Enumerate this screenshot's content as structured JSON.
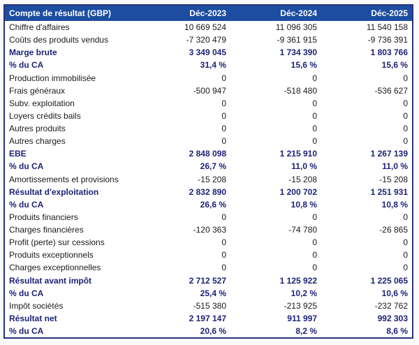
{
  "colors": {
    "page_bg": "#fafafa",
    "header_bg": "#1c4da0",
    "header_text": "#ffffff",
    "table_border": "#27347d",
    "body_text": "#1a1a1a",
    "bold_text": "#1e2276",
    "table_bg": "#ffffff"
  },
  "chart_data": {
    "type": "table",
    "title": "Compte de résultat (GBP)",
    "columns": [
      "Déc-2023",
      "Déc-2024",
      "Déc-2025"
    ],
    "rows": [
      {
        "label": "Chiffre d'affaires",
        "values": [
          "10 669 524",
          "11 096 305",
          "11 540 158"
        ],
        "bold": false
      },
      {
        "label": "Coûts des produits vendus",
        "values": [
          "-7 320 479",
          "-9 361 915",
          "-9 736 391"
        ],
        "bold": false
      },
      {
        "label": "Marge brute",
        "values": [
          "3 349 045",
          "1 734 390",
          "1 803 766"
        ],
        "bold": true
      },
      {
        "label": "% du CA",
        "values": [
          "31,4 %",
          "15,6 %",
          "15,6 %"
        ],
        "bold": true
      },
      {
        "label": "Production immobilisée",
        "values": [
          "0",
          "0",
          "0"
        ],
        "bold": false
      },
      {
        "label": "Frais généraux",
        "values": [
          "-500 947",
          "-518 480",
          "-536 627"
        ],
        "bold": false
      },
      {
        "label": "Subv. exploitation",
        "values": [
          "0",
          "0",
          "0"
        ],
        "bold": false
      },
      {
        "label": "Loyers crédits bails",
        "values": [
          "0",
          "0",
          "0"
        ],
        "bold": false
      },
      {
        "label": "Autres produits",
        "values": [
          "0",
          "0",
          "0"
        ],
        "bold": false
      },
      {
        "label": "Autres charges",
        "values": [
          "0",
          "0",
          "0"
        ],
        "bold": false
      },
      {
        "label": "EBE",
        "values": [
          "2 848 098",
          "1 215 910",
          "1 267 139"
        ],
        "bold": true
      },
      {
        "label": "% du CA",
        "values": [
          "26,7 %",
          "11,0 %",
          "11,0 %"
        ],
        "bold": true
      },
      {
        "label": "Amortissements et provisions",
        "values": [
          "-15 208",
          "-15 208",
          "-15 208"
        ],
        "bold": false
      },
      {
        "label": "Résultat d'exploitation",
        "values": [
          "2 832 890",
          "1 200 702",
          "1 251 931"
        ],
        "bold": true
      },
      {
        "label": "% du CA",
        "values": [
          "26,6 %",
          "10,8 %",
          "10,8 %"
        ],
        "bold": true
      },
      {
        "label": "Produits financiers",
        "values": [
          "0",
          "0",
          "0"
        ],
        "bold": false
      },
      {
        "label": "Charges financières",
        "values": [
          "-120 363",
          "-74 780",
          "-26 865"
        ],
        "bold": false
      },
      {
        "label": "Profit (perte) sur cessions",
        "values": [
          "0",
          "0",
          "0"
        ],
        "bold": false
      },
      {
        "label": "Produits exceptionnels",
        "values": [
          "0",
          "0",
          "0"
        ],
        "bold": false
      },
      {
        "label": "Charges exceptionnelles",
        "values": [
          "0",
          "0",
          "0"
        ],
        "bold": false
      },
      {
        "label": "Résultat avant impôt",
        "values": [
          "2 712 527",
          "1 125 922",
          "1 225 065"
        ],
        "bold": true
      },
      {
        "label": "% du CA",
        "values": [
          "25,4 %",
          "10,2 %",
          "10,6 %"
        ],
        "bold": true
      },
      {
        "label": "Impôt sociétés",
        "values": [
          "-515 380",
          "-213 925",
          "-232 762"
        ],
        "bold": false
      },
      {
        "label": "Résultat net",
        "values": [
          "2 197 147",
          "911 997",
          "992 303"
        ],
        "bold": true
      },
      {
        "label": "% du CA",
        "values": [
          "20,6 %",
          "8,2 %",
          "8,6 %"
        ],
        "bold": true
      }
    ]
  }
}
